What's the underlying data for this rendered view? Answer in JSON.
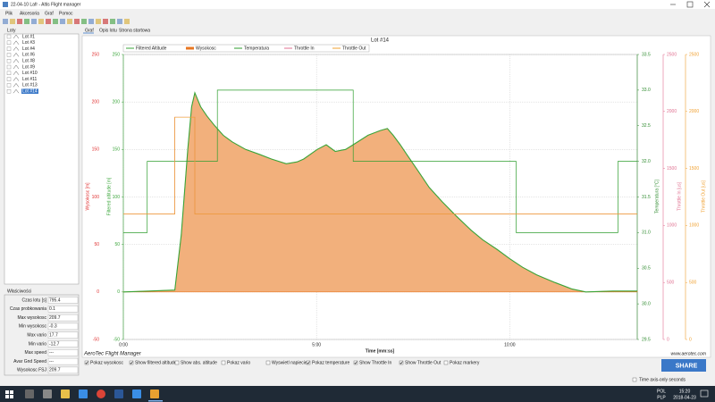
{
  "window": {
    "title": "22-04-10 Lafr - Altis Flight manager"
  },
  "menu": [
    "Plik",
    "Akcesoria",
    "Graf",
    "Pomoc"
  ],
  "tabs": [
    "Graf",
    "Opis lotu",
    "Strona startowa"
  ],
  "tree": {
    "title": "Loty",
    "items": [
      "Lot #1",
      "Lot #3",
      "Lot #4",
      "Lot #6",
      "Lot #8",
      "Lot #9",
      "Lot #10",
      "Lot #11",
      "Lot #13",
      "Lot #14"
    ],
    "selected": 9
  },
  "properties": {
    "title": "Właściwości",
    "rows": [
      [
        "Czas lotu [s]",
        "795.4"
      ],
      [
        "Czas probkowania",
        "0.1"
      ],
      [
        "Max wysokosc",
        "209.7"
      ],
      [
        "Min wysokosc",
        "-0.3"
      ],
      [
        "Max vario",
        "17.7"
      ],
      [
        "Min vario",
        "-12.7"
      ],
      [
        "Max speed",
        "---"
      ],
      [
        "Avar Gnd Speed",
        "---"
      ],
      [
        "Wysokosc FSJ",
        "209.7"
      ]
    ]
  },
  "chart_data": {
    "type": "line",
    "title": "Lot #14",
    "x_label": "Time [mm:ss]",
    "grid": true,
    "xlim": [
      0,
      798
    ],
    "xticks": [
      {
        "value": 0,
        "label": "0:00"
      },
      {
        "value": 300,
        "label": "5:00"
      },
      {
        "value": 600,
        "label": "10:00"
      }
    ],
    "axes": [
      {
        "label": "Wysokosc [m]",
        "color": "#e03030",
        "lim": [
          -50,
          250
        ],
        "ticks": [
          -50,
          0,
          50,
          100,
          150,
          200,
          250
        ]
      },
      {
        "label": "Filtered altitude [m]",
        "color": "#3aa53a",
        "lim": [
          -50,
          250
        ],
        "ticks": [
          -50,
          0,
          50,
          100,
          150,
          200,
          250
        ]
      },
      {
        "label": "Temperatura [°C]",
        "color": "#2e8b2e",
        "lim": [
          29.5,
          33.5
        ],
        "ticks": [
          29.5,
          {
            "value": 30,
            "label": "30.0"
          },
          30.5,
          {
            "value": 31,
            "label": "31.0"
          },
          31.5,
          {
            "value": 32,
            "label": "32.0"
          },
          32.5,
          {
            "value": 33,
            "label": "33.0"
          },
          33.5
        ]
      },
      {
        "label": "Throttle In [us]",
        "color": "#e07090",
        "lim": [
          0,
          2500
        ],
        "ticks": [
          0,
          500,
          1000,
          1500,
          2000,
          2500
        ]
      },
      {
        "label": "Throttle Out [us]",
        "color": "#f0a030",
        "lim": [
          0,
          2500
        ],
        "ticks": [
          0,
          500,
          1000,
          1500,
          2000,
          2500
        ]
      }
    ],
    "series": [
      {
        "name": "Filtered Altitude",
        "color": "#3aa53a",
        "axis": 1,
        "style": "line",
        "x": [
          0,
          40,
          80,
          90,
          100,
          106,
          111,
          120,
          130,
          142,
          155,
          169,
          190,
          211,
          230,
          253,
          270,
          280,
          301,
          315,
          329,
          345,
          357,
          380,
          399,
          410,
          419,
          430,
          440,
          455,
          475,
          495,
          517,
          540,
          558,
          580,
          600,
          620,
          642,
          670,
          697,
          718,
          760,
          798
        ],
        "values": [
          0,
          1,
          2,
          60,
          150,
          195,
          209.7,
          195,
          185,
          175,
          165,
          158,
          150,
          145,
          140,
          135,
          137,
          140,
          150,
          155,
          148,
          150,
          155,
          165,
          170,
          172,
          165,
          155,
          145,
          130,
          110,
          95,
          80,
          65,
          55,
          45,
          35,
          26,
          18,
          10,
          3,
          0,
          1,
          1
        ]
      },
      {
        "name": "Wysokosc",
        "color": "#e87722",
        "fill": "#f2b07c",
        "axis": 0,
        "style": "area",
        "x": [
          0,
          40,
          80,
          90,
          100,
          106,
          111,
          120,
          130,
          142,
          155,
          169,
          190,
          211,
          230,
          253,
          270,
          280,
          301,
          315,
          329,
          345,
          357,
          380,
          399,
          410,
          419,
          430,
          440,
          455,
          475,
          495,
          517,
          540,
          558,
          580,
          600,
          620,
          642,
          670,
          697,
          718,
          760,
          798
        ],
        "values": [
          0,
          1,
          2,
          60,
          150,
          195,
          209.7,
          195,
          185,
          175,
          165,
          158,
          150,
          145,
          140,
          135,
          137,
          140,
          150,
          155,
          148,
          150,
          155,
          165,
          170,
          172,
          165,
          155,
          145,
          130,
          110,
          95,
          80,
          65,
          55,
          45,
          35,
          26,
          18,
          10,
          3,
          0,
          1,
          1
        ]
      },
      {
        "name": "Temperatura",
        "color": "#2e9e2e",
        "axis": 2,
        "style": "line",
        "x": [
          0,
          37,
          37,
          146,
          146,
          357,
          357,
          610,
          610,
          768,
          768,
          798
        ],
        "values": [
          31,
          31,
          32,
          32,
          33,
          33,
          32,
          32,
          31,
          31,
          32,
          32
        ]
      },
      {
        "name": "Throttle In",
        "color": "#e07090",
        "axis": 3,
        "style": "line",
        "x": [
          0,
          80,
          80,
          111,
          111,
          798
        ],
        "values": [
          1100,
          1100,
          1950,
          1950,
          1100,
          1100
        ]
      },
      {
        "name": "Throttle Out",
        "color": "#f0a030",
        "axis": 4,
        "style": "line",
        "x": [
          0,
          80,
          80,
          111,
          111,
          798
        ],
        "values": [
          1100,
          1100,
          1950,
          1950,
          1100,
          1100
        ]
      }
    ]
  },
  "footer": {
    "brand": "AeroTec Flight Manager",
    "url": "www.aerotec.com",
    "share": "SHARE",
    "time_option": "Time axis-only seconds"
  },
  "options": [
    {
      "label": "Pokaz wysokosc",
      "checked": true
    },
    {
      "label": "Show filtered altitude",
      "checked": true
    },
    {
      "label": "Show abs. altitude",
      "checked": false
    },
    {
      "label": "Pokaz vario",
      "checked": false
    },
    {
      "label": "Wyswietl napiecie",
      "checked": false
    },
    {
      "label": "Pokaz temperature",
      "checked": true
    },
    {
      "label": "Show Throttle In",
      "checked": true
    },
    {
      "label": "Show Throttle Out",
      "checked": true
    },
    {
      "label": "Pokaz markery",
      "checked": false
    }
  ],
  "taskbar": {
    "lang": "POL",
    "layout": "PLP",
    "time": "15:20",
    "date": "2018-04-23"
  }
}
